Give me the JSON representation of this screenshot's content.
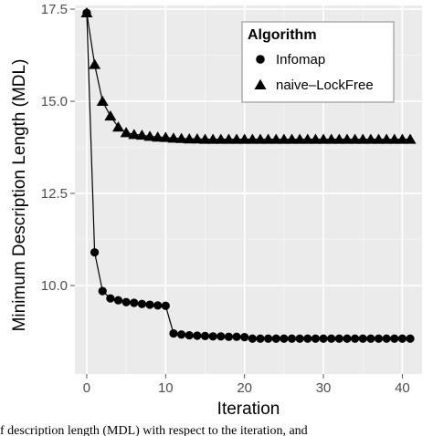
{
  "chart_data": {
    "type": "line",
    "title": "",
    "xlabel": "Iteration",
    "ylabel": "Minimum Description Length (MDL)",
    "xlim": [
      -1.5,
      42.5
    ],
    "ylim": [
      7.6,
      17.6
    ],
    "xticks": [
      0,
      10,
      20,
      30,
      40
    ],
    "yticks": [
      10.0,
      12.5,
      15.0,
      17.5
    ],
    "ytick_labels": [
      "10.0",
      "12.5",
      "15.0",
      "17.5"
    ],
    "grid": true,
    "background": "#ebebeb",
    "legend": {
      "title": "Algorithm",
      "placement": "top-right"
    },
    "series": [
      {
        "name": "Infomap",
        "marker": "circle",
        "x": [
          0,
          1,
          2,
          3,
          4,
          5,
          6,
          7,
          8,
          9,
          10,
          11,
          12,
          13,
          14,
          15,
          16,
          17,
          18,
          19,
          20,
          21,
          22,
          23,
          24,
          25,
          26,
          27,
          28,
          29,
          30,
          31,
          32,
          33,
          34,
          35,
          36,
          37,
          38,
          39,
          40,
          41
        ],
        "values": [
          17.4,
          10.9,
          9.85,
          9.65,
          9.6,
          9.55,
          9.53,
          9.5,
          9.48,
          9.46,
          9.45,
          8.7,
          8.67,
          8.65,
          8.64,
          8.63,
          8.62,
          8.62,
          8.61,
          8.61,
          8.6,
          8.56,
          8.56,
          8.56,
          8.56,
          8.56,
          8.56,
          8.56,
          8.56,
          8.56,
          8.56,
          8.56,
          8.56,
          8.56,
          8.56,
          8.56,
          8.56,
          8.56,
          8.56,
          8.56,
          8.56,
          8.56
        ]
      },
      {
        "name": "naive–LockFree",
        "marker": "triangle",
        "x": [
          0,
          1,
          2,
          3,
          4,
          5,
          6,
          7,
          8,
          9,
          10,
          11,
          12,
          13,
          14,
          15,
          16,
          17,
          18,
          19,
          20,
          21,
          22,
          23,
          24,
          25,
          26,
          27,
          28,
          29,
          30,
          31,
          32,
          33,
          34,
          35,
          36,
          37,
          38,
          39,
          40,
          41
        ],
        "values": [
          17.4,
          16.0,
          15.0,
          14.6,
          14.3,
          14.15,
          14.1,
          14.08,
          14.05,
          14.03,
          14.02,
          14.0,
          13.99,
          13.98,
          13.98,
          13.97,
          13.97,
          13.97,
          13.97,
          13.97,
          13.97,
          13.97,
          13.97,
          13.97,
          13.97,
          13.97,
          13.97,
          13.97,
          13.97,
          13.97,
          13.97,
          13.97,
          13.97,
          13.97,
          13.97,
          13.97,
          13.97,
          13.97,
          13.97,
          13.97,
          13.97,
          13.97
        ]
      }
    ]
  },
  "caption": "f description length (MDL) with respect to the iteration, and"
}
